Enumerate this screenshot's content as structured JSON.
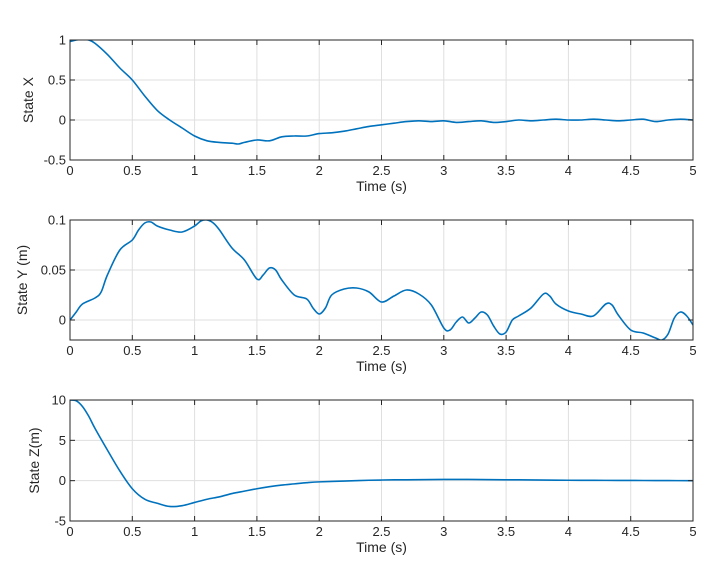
{
  "chart_data": [
    {
      "type": "line",
      "xlabel": "Time (s)",
      "ylabel": "State X",
      "xlim": [
        0,
        5
      ],
      "ylim": [
        -0.5,
        1
      ],
      "xticks": [
        "0",
        "0.5",
        "1",
        "1.5",
        "2",
        "2.5",
        "3",
        "3.5",
        "4",
        "4.5",
        "5"
      ],
      "yticks": [
        "-0.5",
        "0",
        "0.5",
        "1"
      ],
      "grid": true,
      "line_color": "#0072BD",
      "series": [
        {
          "x": [
            0,
            0.05,
            0.1,
            0.15,
            0.2,
            0.3,
            0.4,
            0.5,
            0.6,
            0.7,
            0.8,
            0.9,
            1.0,
            1.1,
            1.2,
            1.3,
            1.35,
            1.4,
            1.5,
            1.6,
            1.7,
            1.8,
            1.9,
            2.0,
            2.1,
            2.2,
            2.3,
            2.4,
            2.5,
            2.6,
            2.7,
            2.8,
            2.9,
            3.0,
            3.1,
            3.2,
            3.3,
            3.4,
            3.5,
            3.6,
            3.7,
            3.8,
            3.9,
            4.0,
            4.1,
            4.2,
            4.3,
            4.4,
            4.5,
            4.6,
            4.7,
            4.8,
            4.9,
            5.0
          ],
          "values": [
            0.98,
            1.0,
            1.01,
            1.0,
            0.96,
            0.82,
            0.65,
            0.5,
            0.3,
            0.12,
            0.0,
            -0.1,
            -0.2,
            -0.26,
            -0.28,
            -0.29,
            -0.3,
            -0.28,
            -0.25,
            -0.26,
            -0.21,
            -0.2,
            -0.2,
            -0.17,
            -0.16,
            -0.14,
            -0.11,
            -0.08,
            -0.06,
            -0.04,
            -0.02,
            -0.01,
            -0.02,
            -0.01,
            -0.03,
            -0.02,
            -0.01,
            -0.03,
            -0.02,
            0.0,
            -0.01,
            0.0,
            0.01,
            0.0,
            0.0,
            0.01,
            0.0,
            -0.01,
            0.0,
            0.01,
            -0.02,
            0.0,
            0.01,
            0.0
          ]
        }
      ]
    },
    {
      "type": "line",
      "xlabel": "Time (s)",
      "ylabel": "State Y (m)",
      "xlim": [
        0,
        5
      ],
      "ylim": [
        -0.02,
        0.1
      ],
      "xticks": [
        "0",
        "0.5",
        "1",
        "1.5",
        "2",
        "2.5",
        "3",
        "3.5",
        "4",
        "4.5",
        "5"
      ],
      "yticks": [
        "0",
        "0.05",
        "0.1"
      ],
      "grid": true,
      "line_color": "#0072BD",
      "series": [
        {
          "x": [
            0,
            0.05,
            0.1,
            0.2,
            0.25,
            0.3,
            0.4,
            0.5,
            0.55,
            0.6,
            0.65,
            0.7,
            0.8,
            0.9,
            1.0,
            1.05,
            1.1,
            1.15,
            1.2,
            1.3,
            1.4,
            1.5,
            1.55,
            1.6,
            1.65,
            1.7,
            1.8,
            1.9,
            1.95,
            2.0,
            2.05,
            2.1,
            2.2,
            2.3,
            2.4,
            2.5,
            2.6,
            2.7,
            2.8,
            2.9,
            3.0,
            3.05,
            3.1,
            3.15,
            3.2,
            3.25,
            3.3,
            3.35,
            3.4,
            3.45,
            3.5,
            3.55,
            3.6,
            3.7,
            3.8,
            3.85,
            3.9,
            4.0,
            4.1,
            4.2,
            4.3,
            4.35,
            4.4,
            4.5,
            4.6,
            4.7,
            4.75,
            4.8,
            4.85,
            4.9,
            4.95,
            5.0
          ],
          "values": [
            0.0,
            0.008,
            0.016,
            0.022,
            0.028,
            0.045,
            0.07,
            0.08,
            0.09,
            0.097,
            0.098,
            0.094,
            0.09,
            0.088,
            0.094,
            0.099,
            0.1,
            0.097,
            0.09,
            0.072,
            0.06,
            0.041,
            0.045,
            0.052,
            0.05,
            0.04,
            0.025,
            0.021,
            0.012,
            0.006,
            0.012,
            0.025,
            0.031,
            0.032,
            0.028,
            0.018,
            0.024,
            0.03,
            0.026,
            0.015,
            -0.008,
            -0.01,
            -0.002,
            0.003,
            -0.003,
            0.002,
            0.008,
            0.005,
            -0.006,
            -0.014,
            -0.012,
            0.0,
            0.004,
            0.012,
            0.026,
            0.024,
            0.016,
            0.009,
            0.006,
            0.004,
            0.016,
            0.015,
            0.005,
            -0.01,
            -0.013,
            -0.018,
            -0.02,
            -0.014,
            0.002,
            0.008,
            0.004,
            -0.005
          ]
        }
      ]
    },
    {
      "type": "line",
      "xlabel": "Time (s)",
      "ylabel": "State Z(m)",
      "xlim": [
        0,
        5
      ],
      "ylim": [
        -5,
        10
      ],
      "xticks": [
        "0",
        "0.5",
        "1",
        "1.5",
        "2",
        "2.5",
        "3",
        "3.5",
        "4",
        "4.5",
        "5"
      ],
      "yticks": [
        "-5",
        "0",
        "5",
        "10"
      ],
      "grid": true,
      "line_color": "#0072BD",
      "series": [
        {
          "x": [
            0,
            0.05,
            0.1,
            0.15,
            0.2,
            0.3,
            0.4,
            0.5,
            0.6,
            0.7,
            0.8,
            0.9,
            1.0,
            1.1,
            1.2,
            1.3,
            1.4,
            1.5,
            1.6,
            1.7,
            1.8,
            1.9,
            2.0,
            2.2,
            2.4,
            2.6,
            2.8,
            3.0,
            3.2,
            3.4,
            3.6,
            3.8,
            4.0,
            4.2,
            4.4,
            4.6,
            4.8,
            5.0
          ],
          "values": [
            10.0,
            9.9,
            9.2,
            8.0,
            6.5,
            3.8,
            1.2,
            -1.0,
            -2.3,
            -2.8,
            -3.2,
            -3.1,
            -2.7,
            -2.3,
            -2.0,
            -1.6,
            -1.3,
            -1.0,
            -0.75,
            -0.55,
            -0.4,
            -0.25,
            -0.15,
            -0.05,
            0.05,
            0.1,
            0.12,
            0.15,
            0.15,
            0.12,
            0.1,
            0.08,
            0.05,
            0.04,
            0.03,
            0.02,
            0.01,
            0.0
          ]
        }
      ]
    }
  ]
}
